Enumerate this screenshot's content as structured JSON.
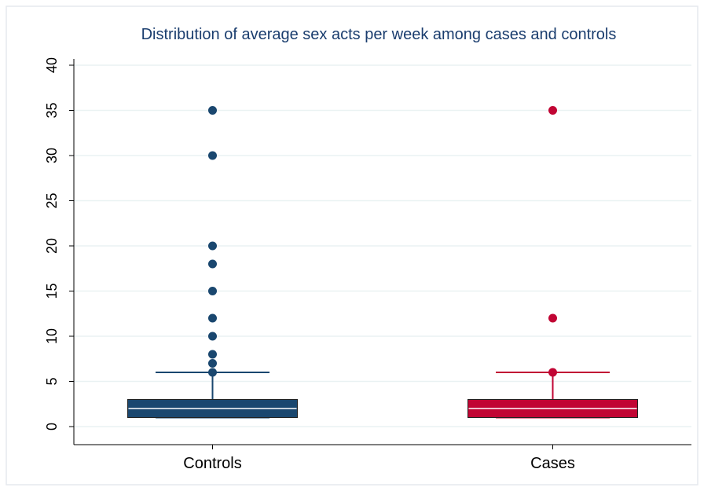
{
  "chart_data": {
    "type": "box",
    "title": "Distribution of average sex acts per week among cases and controls",
    "categories": [
      "Controls",
      "Cases"
    ],
    "series": [
      {
        "color": "#1a476f",
        "min": 1,
        "q1": 1,
        "median": 2,
        "q3": 3,
        "max": 6,
        "outliers": [
          6,
          7,
          8,
          10,
          12,
          15,
          18,
          20,
          30,
          35
        ]
      },
      {
        "color": "#c10534",
        "min": 1,
        "q1": 1,
        "median": 2,
        "q3": 3,
        "max": 6,
        "outliers": [
          6,
          12,
          35
        ]
      }
    ],
    "ylim": [
      -2,
      42
    ],
    "yticks": [
      0,
      5,
      10,
      15,
      20,
      25,
      30,
      35,
      40
    ],
    "grid": true
  }
}
